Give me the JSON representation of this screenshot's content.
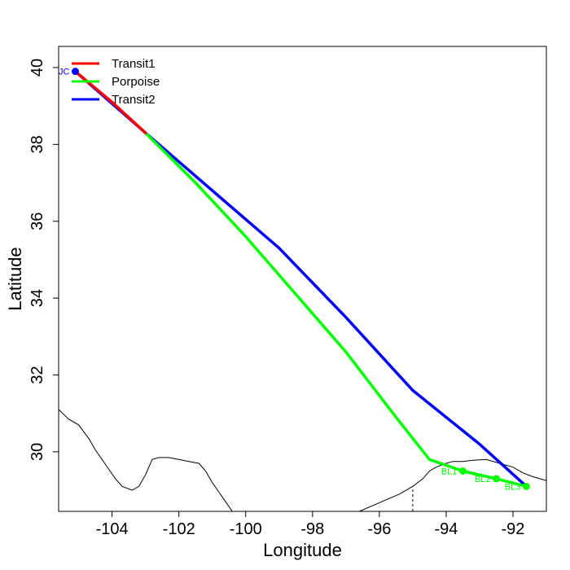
{
  "chart_data": {
    "type": "line",
    "xlabel": "Longitude",
    "ylabel": "Latitude",
    "xlim": [
      -105.6,
      -91.0
    ],
    "ylim": [
      28.45,
      40.55
    ],
    "xticks": [
      -104,
      -102,
      -100,
      -98,
      -96,
      -94,
      -92
    ],
    "yticks": [
      30,
      32,
      34,
      36,
      38,
      40
    ],
    "xtick_labels": [
      "-104",
      "-102",
      "-100",
      "-98",
      "-96",
      "-94",
      "-92"
    ],
    "ytick_labels": [
      "30",
      "32",
      "34",
      "36",
      "38",
      "40"
    ],
    "legend_position": "top-left",
    "series": [
      {
        "name": "Transit1",
        "color": "#ff0000",
        "x": [
          -105.1,
          -104.0,
          -103.0
        ],
        "y": [
          39.9,
          39.1,
          38.3
        ]
      },
      {
        "name": "Porpoise",
        "color": "#00ff00",
        "x": [
          -103.0,
          -101.5,
          -100.0,
          -98.5,
          -97.0,
          -95.5,
          -94.5,
          -94.0,
          -93.5,
          -92.5,
          -91.6
        ],
        "y": [
          38.3,
          37.0,
          35.6,
          34.1,
          32.6,
          30.9,
          29.8,
          29.65,
          29.5,
          29.3,
          29.1
        ]
      },
      {
        "name": "Transit2",
        "color": "#0000ff",
        "x": [
          -105.1,
          -103.0,
          -101.0,
          -99.0,
          -97.0,
          -95.0,
          -93.0,
          -91.6
        ],
        "y": [
          39.9,
          38.3,
          36.8,
          35.3,
          33.5,
          31.6,
          30.2,
          29.1
        ]
      }
    ],
    "points": [
      {
        "label": "JC",
        "x": -105.1,
        "y": 39.9,
        "color": "#0000ff",
        "anchor": "left"
      },
      {
        "label": "BL1",
        "x": -93.5,
        "y": 29.5,
        "color": "#00ff00",
        "anchor": "left"
      },
      {
        "label": "BL2",
        "x": -92.5,
        "y": 29.3,
        "color": "#00ff00",
        "anchor": "left"
      },
      {
        "label": "BL3",
        "x": -91.6,
        "y": 29.1,
        "color": "#00ff00",
        "anchor": "left"
      }
    ],
    "coastline": [
      [
        -105.6,
        31.1
      ],
      [
        -105.3,
        30.85
      ],
      [
        -105.0,
        30.7
      ],
      [
        -104.7,
        30.35
      ],
      [
        -104.5,
        30.05
      ],
      [
        -104.3,
        29.8
      ],
      [
        -104.1,
        29.55
      ],
      [
        -103.9,
        29.3
      ],
      [
        -103.7,
        29.1
      ],
      [
        -103.4,
        29.0
      ],
      [
        -103.2,
        29.1
      ],
      [
        -103.0,
        29.4
      ],
      [
        -102.8,
        29.8
      ],
      [
        -102.6,
        29.85
      ],
      [
        -102.3,
        29.85
      ],
      [
        -102.0,
        29.8
      ],
      [
        -101.7,
        29.75
      ],
      [
        -101.4,
        29.7
      ],
      [
        -101.2,
        29.5
      ],
      [
        -101.0,
        29.2
      ],
      [
        -100.8,
        28.95
      ],
      [
        -100.6,
        28.7
      ],
      [
        -100.4,
        28.45
      ]
    ],
    "gulf_coast": [
      [
        -96.6,
        28.45
      ],
      [
        -96.2,
        28.6
      ],
      [
        -95.8,
        28.75
      ],
      [
        -95.4,
        28.9
      ],
      [
        -95.0,
        29.1
      ],
      [
        -94.7,
        29.3
      ],
      [
        -94.5,
        29.5
      ],
      [
        -94.3,
        29.6
      ],
      [
        -94.0,
        29.7
      ],
      [
        -93.8,
        29.75
      ],
      [
        -93.5,
        29.75
      ],
      [
        -93.2,
        29.78
      ],
      [
        -92.8,
        29.8
      ],
      [
        -92.4,
        29.7
      ],
      [
        -92.0,
        29.6
      ],
      [
        -91.7,
        29.45
      ],
      [
        -91.4,
        29.35
      ],
      [
        -91.0,
        29.25
      ]
    ],
    "dashed_line": {
      "x": -95.0,
      "y": [
        28.45,
        29.1
      ]
    }
  }
}
